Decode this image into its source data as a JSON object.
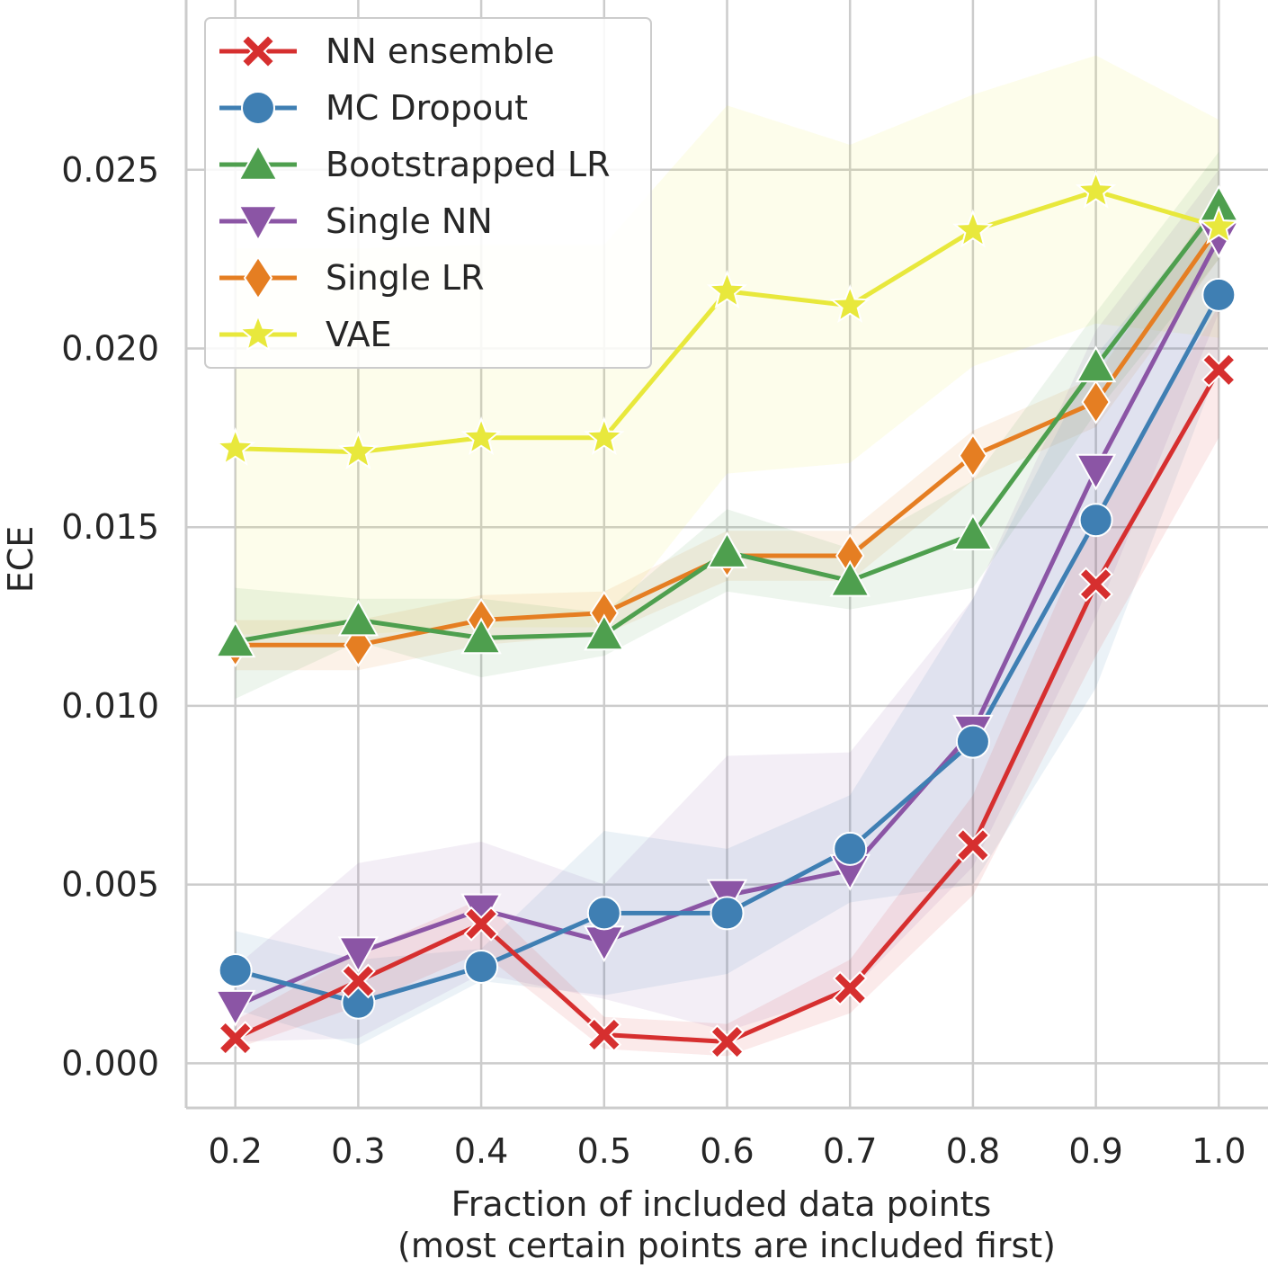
{
  "chart_data": {
    "type": "line",
    "xlabel": "Fraction of included data points",
    "xlabel_line2": "(most certain points are included first)",
    "ylabel": "ECE",
    "xlim": [
      0.16,
      1.04
    ],
    "ylim": [
      -0.00125,
      0.02975
    ],
    "x": [
      0.2,
      0.3,
      0.4,
      0.5,
      0.6,
      0.7,
      0.8,
      0.9,
      1.0
    ],
    "x_tick_labels": [
      "0.2",
      "0.3",
      "0.4",
      "0.5",
      "0.6",
      "0.7",
      "0.8",
      "0.9",
      "1.0"
    ],
    "y_ticks": [
      0.0,
      0.005,
      0.01,
      0.015,
      0.02,
      0.025
    ],
    "y_tick_labels": [
      "0.000",
      "0.005",
      "0.010",
      "0.015",
      "0.020",
      "0.025"
    ],
    "grid": true,
    "legend_position": "top-left",
    "series": [
      {
        "name": "NN ensemble",
        "color": "#d62f2f",
        "marker": "x-filled",
        "values": [
          0.0007,
          0.0023,
          0.0039,
          0.0008,
          0.0006,
          0.0021,
          0.0061,
          0.0134,
          0.0194
        ],
        "lower": [
          0.0004,
          0.0016,
          0.0031,
          0.0004,
          0.0002,
          0.0014,
          0.0047,
          0.0114,
          0.0175
        ],
        "upper": [
          0.0012,
          0.0031,
          0.0046,
          0.0013,
          0.0011,
          0.0029,
          0.0075,
          0.0154,
          0.0212
        ]
      },
      {
        "name": "MC Dropout",
        "color": "#3f7fb3",
        "marker": "circle",
        "values": [
          0.0026,
          0.0017,
          0.0027,
          0.0042,
          0.0042,
          0.006,
          0.009,
          0.0152,
          0.0215
        ],
        "lower": [
          0.0015,
          0.0005,
          0.0023,
          0.0019,
          0.0025,
          0.0045,
          0.005,
          0.0105,
          0.0195
        ],
        "upper": [
          0.0037,
          0.0029,
          0.0032,
          0.0065,
          0.006,
          0.0075,
          0.013,
          0.0198,
          0.024
        ]
      },
      {
        "name": "Bootstrapped LR",
        "color": "#4e9f4e",
        "marker": "triangle-up",
        "values": [
          0.0118,
          0.0124,
          0.0119,
          0.012,
          0.0143,
          0.0135,
          0.0148,
          0.0195,
          0.024
        ],
        "lower": [
          0.0102,
          0.0118,
          0.0108,
          0.0114,
          0.0132,
          0.0127,
          0.0133,
          0.0182,
          0.0225
        ],
        "upper": [
          0.0133,
          0.013,
          0.013,
          0.0126,
          0.0155,
          0.0144,
          0.0163,
          0.021,
          0.0255
        ]
      },
      {
        "name": "Single NN",
        "color": "#8b55a5",
        "marker": "triangle-down",
        "values": [
          0.0016,
          0.0031,
          0.0043,
          0.0034,
          0.0047,
          0.0054,
          0.0093,
          0.0166,
          0.0231
        ],
        "lower": [
          0.0006,
          0.0007,
          0.0025,
          0.0018,
          0.0009,
          0.002,
          0.0055,
          0.0125,
          0.021
        ],
        "upper": [
          0.0027,
          0.0056,
          0.0062,
          0.005,
          0.0086,
          0.0087,
          0.013,
          0.0205,
          0.025
        ]
      },
      {
        "name": "Single LR",
        "color": "#e57e22",
        "marker": "diamond",
        "values": [
          0.0117,
          0.0117,
          0.0124,
          0.0126,
          0.0142,
          0.0142,
          0.017,
          0.0185,
          0.0234
        ],
        "lower": [
          0.011,
          0.011,
          0.0117,
          0.012,
          0.0135,
          0.0135,
          0.0163,
          0.0178,
          0.0225
        ],
        "upper": [
          0.0124,
          0.0124,
          0.0131,
          0.0132,
          0.0149,
          0.0149,
          0.0177,
          0.0192,
          0.0243
        ]
      },
      {
        "name": "VAE",
        "color": "#e8e83c",
        "marker": "star",
        "values": [
          0.0172,
          0.0171,
          0.0175,
          0.0175,
          0.0216,
          0.0212,
          0.0233,
          0.0244,
          0.0234
        ],
        "lower": [
          0.012,
          0.012,
          0.0122,
          0.0122,
          0.0165,
          0.0168,
          0.0195,
          0.0207,
          0.0203
        ],
        "upper": [
          0.0228,
          0.0228,
          0.0229,
          0.0229,
          0.0268,
          0.0257,
          0.0271,
          0.0282,
          0.0264
        ]
      }
    ]
  }
}
